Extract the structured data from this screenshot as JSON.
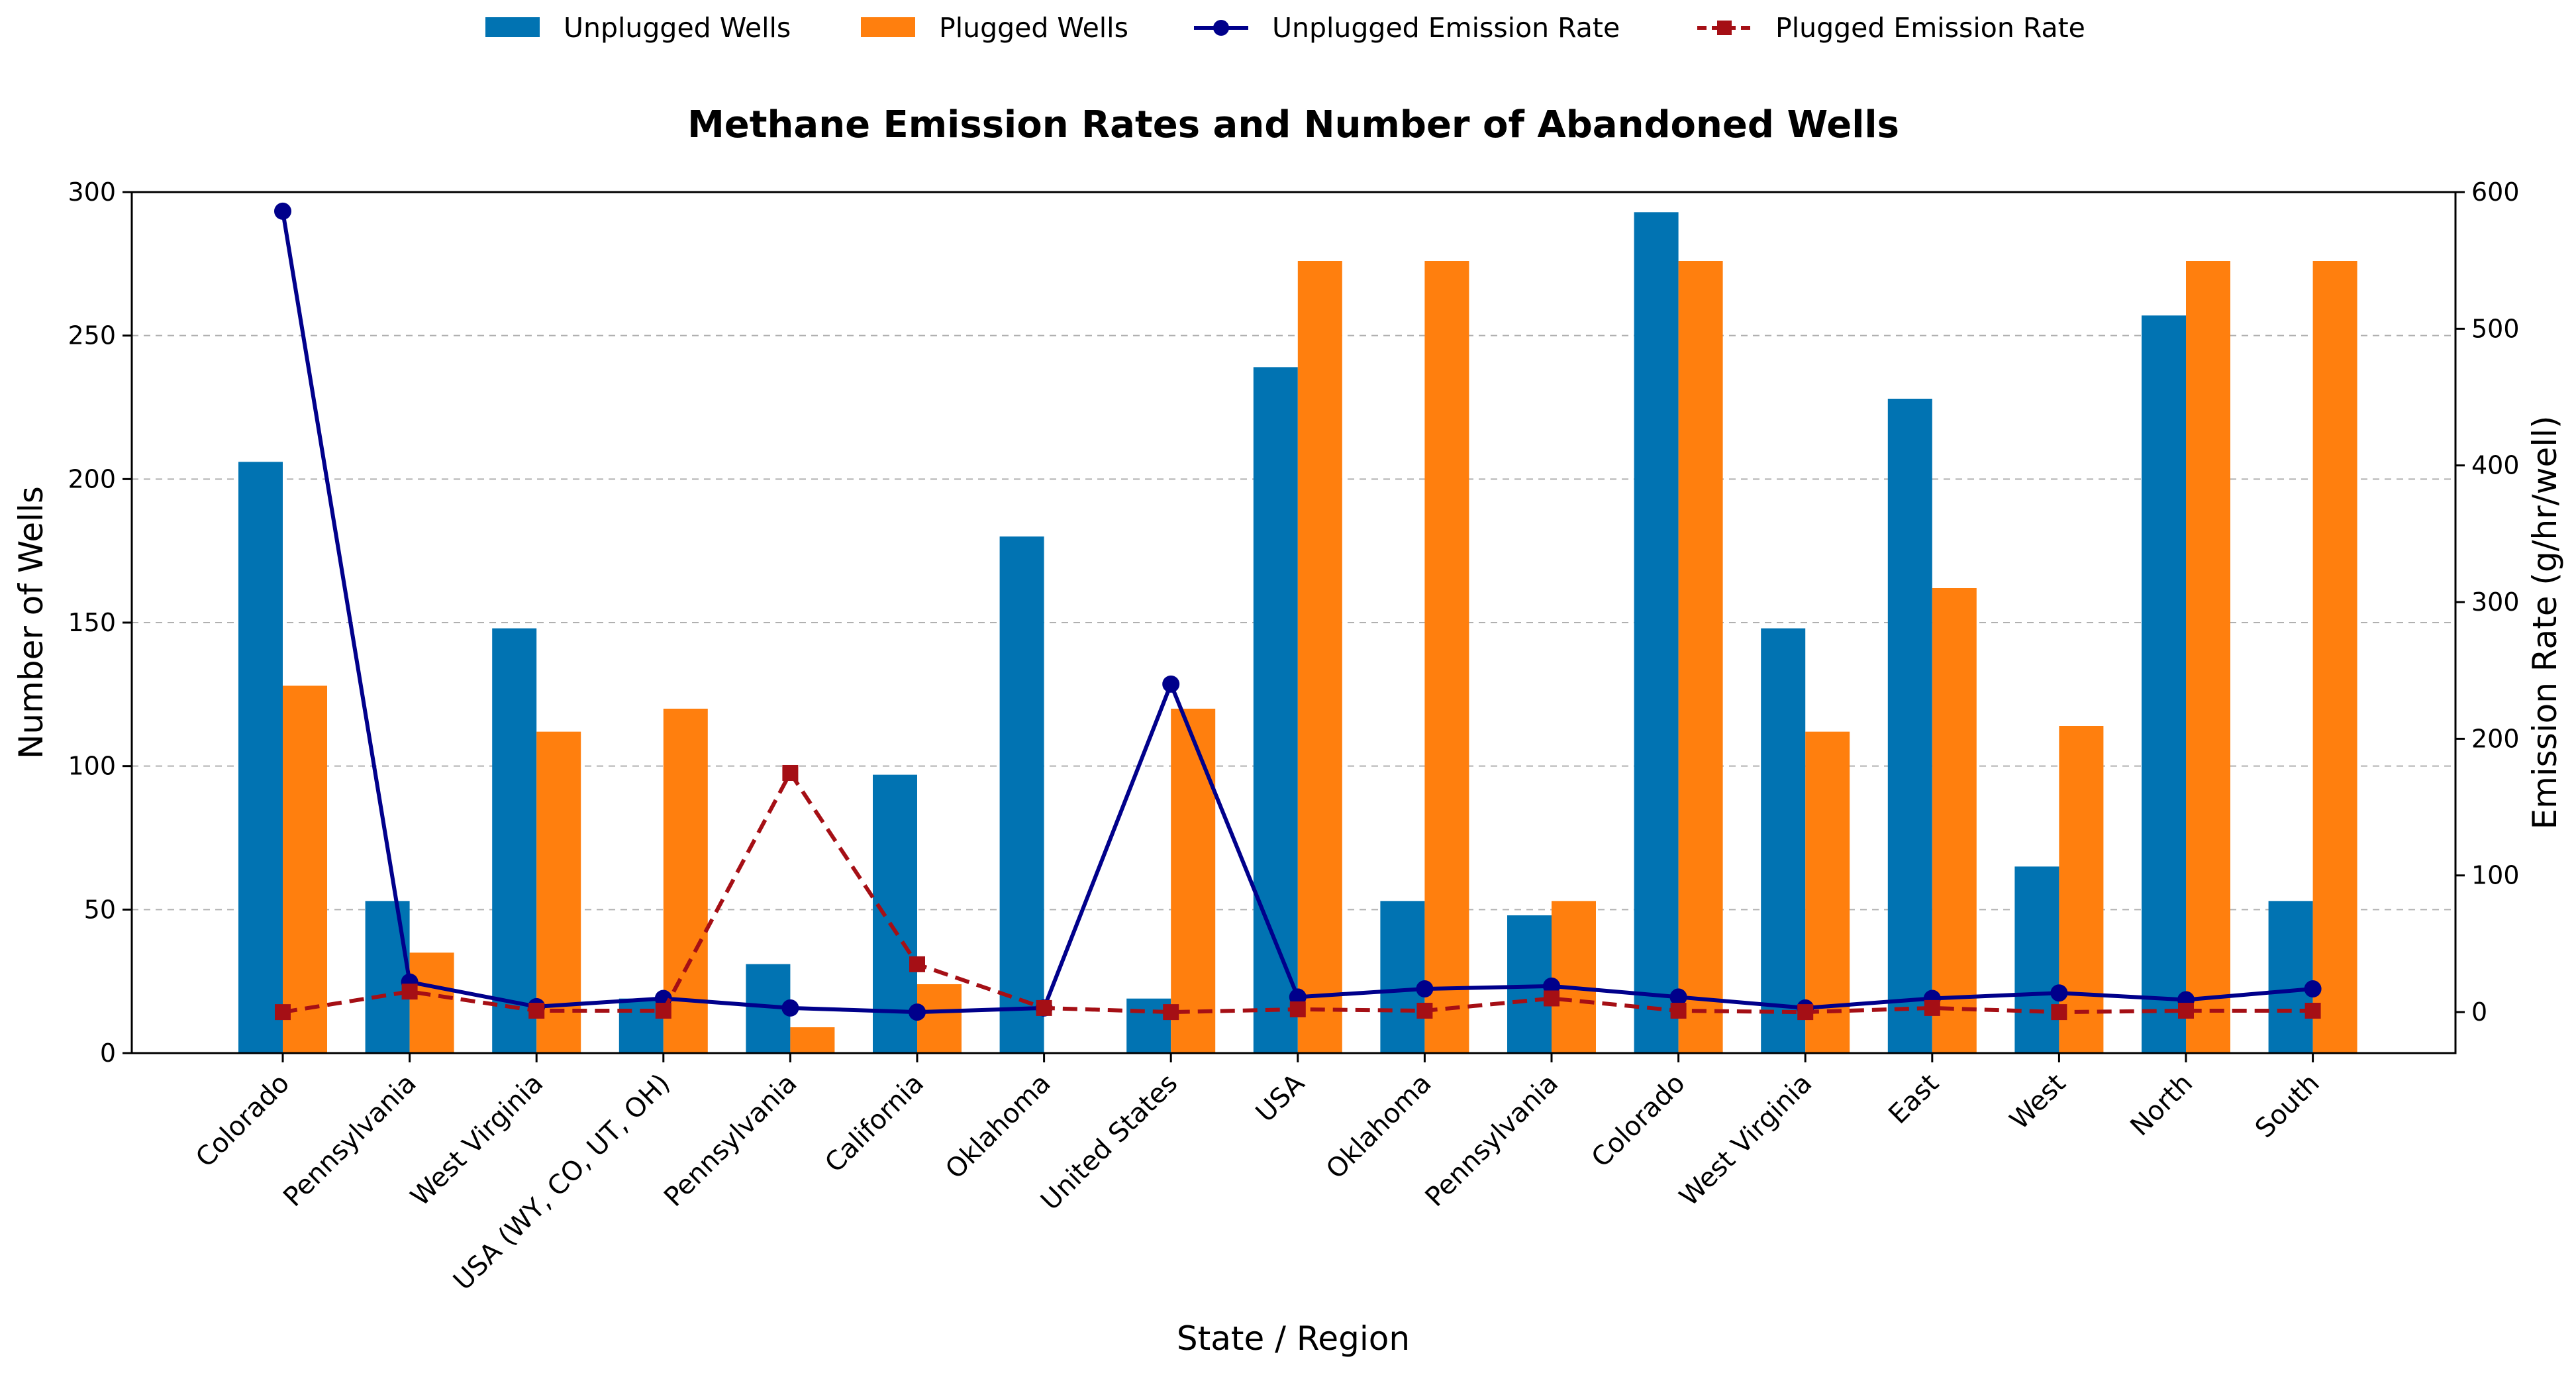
{
  "chart_data": {
    "type": "bar",
    "title": "Methane Emission Rates and Number of Abandoned  Wells",
    "xlabel": "State / Region",
    "ylabel": "Number of Wells",
    "y2label": "Emission Rate (g/hr/well)",
    "ylim": [
      0,
      300
    ],
    "y2lim": [
      -30,
      600
    ],
    "yticks": [
      0,
      50,
      100,
      150,
      200,
      250,
      300
    ],
    "y2ticks": [
      0,
      100,
      200,
      300,
      400,
      500,
      600
    ],
    "grid": "horizontal dashed",
    "legend_position": "top-center",
    "categories": [
      "Colorado",
      "Pennsylvania",
      "West Virginia",
      "USA (WY, CO, UT, OH)",
      "Pennsylvania",
      "California",
      "Oklahoma",
      "United States",
      "USA",
      "Oklahoma",
      "Pennsylvania",
      "Colorado",
      "West Virginia",
      "East",
      "West",
      "North",
      "South"
    ],
    "series": [
      {
        "name": "Unplugged Wells",
        "kind": "bar",
        "axis": "left",
        "color": "#0173b2",
        "values": [
          206,
          53,
          148,
          19,
          31,
          97,
          180,
          19,
          239,
          53,
          48,
          293,
          148,
          228,
          65,
          257,
          53
        ]
      },
      {
        "name": "Plugged Wells",
        "kind": "bar",
        "axis": "left",
        "color": "#ff7f0e",
        "values": [
          128,
          35,
          112,
          120,
          9,
          24,
          0,
          120,
          276,
          276,
          53,
          276,
          112,
          162,
          114,
          276,
          276
        ]
      },
      {
        "name": "Unplugged Emission Rate",
        "kind": "line",
        "axis": "right",
        "color": "#00008b",
        "marker": "circle",
        "dash": "solid",
        "values": [
          586,
          22,
          4,
          10,
          3,
          0,
          3,
          240,
          11,
          17,
          19,
          11,
          3,
          10,
          14,
          9,
          17
        ]
      },
      {
        "name": "Plugged Emission Rate",
        "kind": "line",
        "axis": "right",
        "color": "#a50f15",
        "marker": "square",
        "dash": "dashed",
        "values": [
          0,
          15,
          1,
          1,
          175,
          35,
          3,
          0,
          2,
          1,
          10,
          1,
          0,
          3,
          0,
          1,
          1
        ]
      }
    ]
  }
}
